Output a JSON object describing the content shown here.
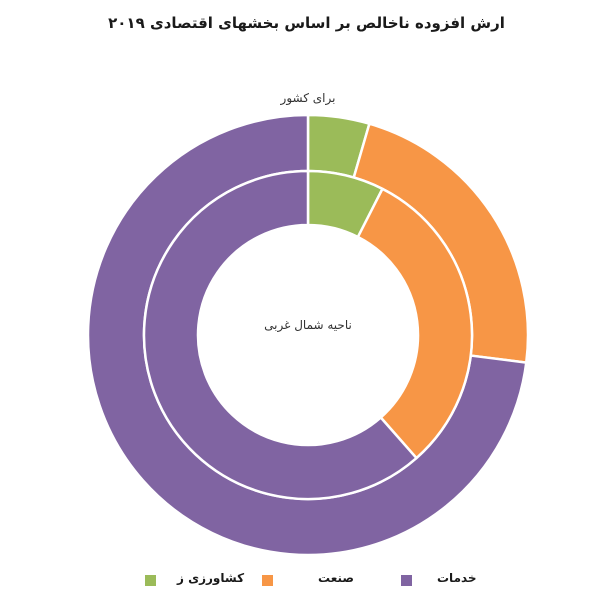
{
  "chart_data": {
    "type": "donut",
    "title": "ارش افزوده ناخالص بر اساس بخشهای اقتصادی ۲۰۱۹",
    "categories": [
      "کشاورزی",
      "صنعت",
      "خدمات"
    ],
    "series": [
      {
        "name": "برای کشور",
        "values": [
          4.5,
          22.5,
          73.0
        ]
      },
      {
        "name": "ناحیه شمال غربی",
        "values": [
          7.5,
          31.0,
          61.5
        ]
      }
    ],
    "colors": {
      "کشاورزی": "#9bbb59",
      "صنعت": "#f79646",
      "خدمات": "#8064a2"
    },
    "legend_placement": "bottom",
    "legend_labels": [
      "کشاورزی ز",
      "صنعت",
      "خدمات"
    ]
  }
}
